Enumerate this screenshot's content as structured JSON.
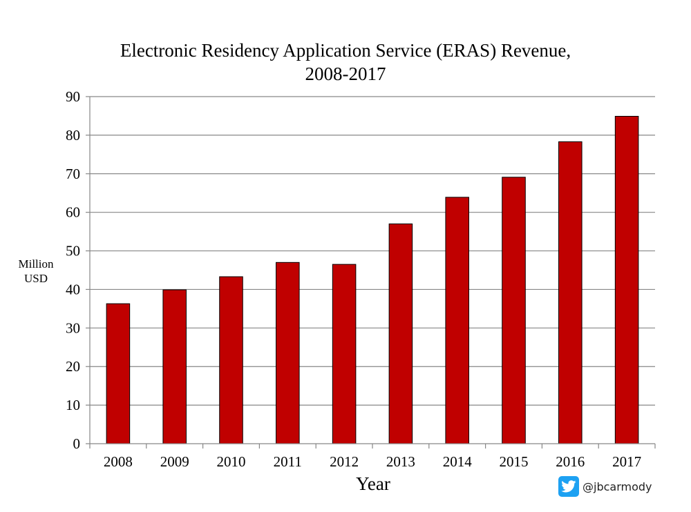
{
  "chart_data": {
    "type": "bar",
    "title_line1": "Electronic Residency Application Service (ERAS) Revenue,",
    "title_line2": "2008-2017",
    "xlabel": "Year",
    "ylabel_line1": "Million",
    "ylabel_line2": "USD",
    "categories": [
      "2008",
      "2009",
      "2010",
      "2011",
      "2012",
      "2013",
      "2014",
      "2015",
      "2016",
      "2017"
    ],
    "values": [
      36.3,
      39.9,
      43.3,
      47.0,
      46.5,
      57.0,
      63.9,
      69.1,
      78.3,
      84.9
    ],
    "ylim": [
      0,
      90
    ],
    "yticks": [
      0,
      10,
      20,
      30,
      40,
      50,
      60,
      70,
      80,
      90
    ],
    "grid": true,
    "bar_color": "#c00000",
    "grid_color": "#868686"
  },
  "credit": {
    "handle": "@jbcarmody",
    "icon": "twitter-bird-icon",
    "icon_color": "#1da1f2"
  }
}
